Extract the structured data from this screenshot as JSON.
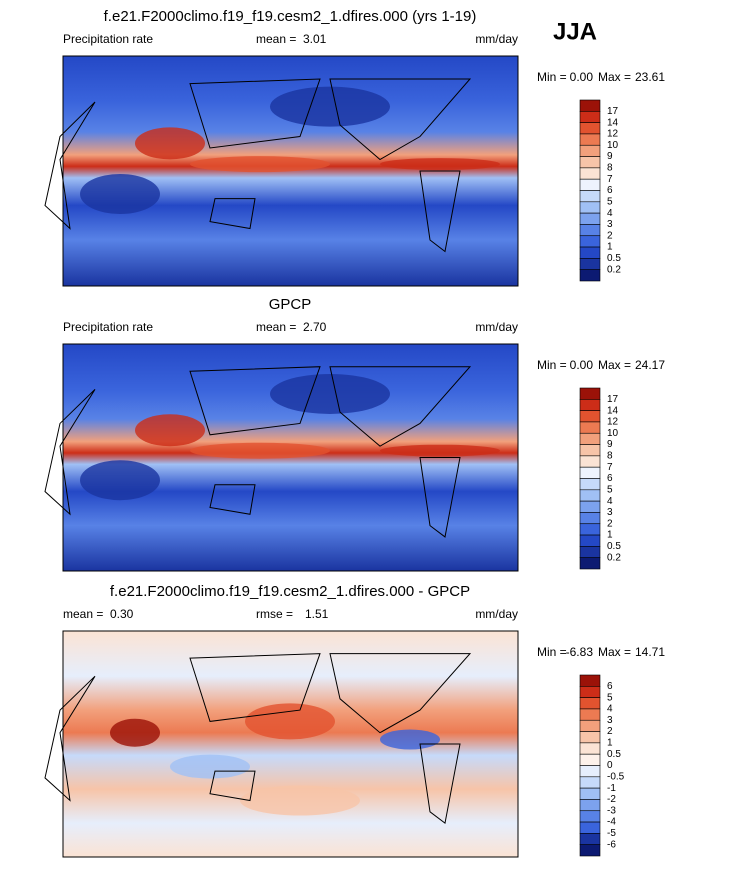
{
  "season": "JJA",
  "panels": [
    {
      "title": "f.e21.F2000climo.f19_f19.cesm2_1.dfires.000 (yrs 1-19)",
      "left_label": "Precipitation rate",
      "stat1_label": "mean =",
      "stat1_value": "3.01",
      "units": "mm/day",
      "min_label": "Min =",
      "min_value": "0.00",
      "max_label": "Max =",
      "max_value": "23.61",
      "colorbar": {
        "levels": [
          17,
          14,
          12,
          10,
          9,
          8,
          7,
          6,
          5,
          4,
          3,
          2,
          1,
          0.5,
          0.2
        ],
        "colors": [
          "#9b1208",
          "#cc2d18",
          "#e2532f",
          "#ec7a52",
          "#f2a07c",
          "#f7c4a8",
          "#fbe3d4",
          "#eef3fd",
          "#c6dafa",
          "#a0c0f5",
          "#7ca2ee",
          "#5882e6",
          "#3a64dc",
          "#2448c6",
          "#1a34a0",
          "#0c1a72"
        ]
      }
    },
    {
      "title": "GPCP",
      "left_label": "Precipitation rate",
      "stat1_label": "mean =",
      "stat1_value": "2.70",
      "units": "mm/day",
      "min_label": "Min =",
      "min_value": "0.00",
      "max_label": "Max =",
      "max_value": "24.17",
      "colorbar": {
        "levels": [
          17,
          14,
          12,
          10,
          9,
          8,
          7,
          6,
          5,
          4,
          3,
          2,
          1,
          0.5,
          0.2
        ],
        "colors": [
          "#9b1208",
          "#cc2d18",
          "#e2532f",
          "#ec7a52",
          "#f2a07c",
          "#f7c4a8",
          "#fbe3d4",
          "#eef3fd",
          "#c6dafa",
          "#a0c0f5",
          "#7ca2ee",
          "#5882e6",
          "#3a64dc",
          "#2448c6",
          "#1a34a0",
          "#0c1a72"
        ]
      }
    },
    {
      "title": "f.e21.F2000climo.f19_f19.cesm2_1.dfires.000 - GPCP",
      "stat1_label": "mean =",
      "stat1_value": "0.30",
      "stat2_label": "rmse =",
      "stat2_value": "1.51",
      "units": "mm/day",
      "min_label": "Min =",
      "min_value": "-6.83",
      "max_label": "Max =",
      "max_value": "14.71",
      "colorbar": {
        "levels": [
          6,
          5,
          4,
          3,
          2,
          1,
          0.5,
          0,
          -0.5,
          -1,
          -2,
          -3,
          -4,
          -5,
          -6
        ],
        "colors": [
          "#9b1208",
          "#cc2d18",
          "#e2532f",
          "#ec7a52",
          "#f2a07c",
          "#f7c4a8",
          "#fbe3d4",
          "#fdf1ea",
          "#e6eefc",
          "#c6dafa",
          "#a0c0f5",
          "#7ca2ee",
          "#5882e6",
          "#3a64dc",
          "#1a34a0",
          "#0c1a72"
        ]
      }
    }
  ]
}
